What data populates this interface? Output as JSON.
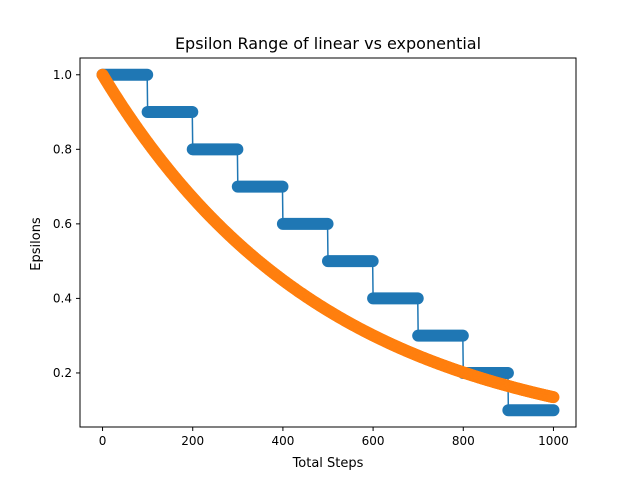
{
  "chart_data": {
    "type": "line",
    "title": "Epsilon Range of linear vs exponential",
    "xlabel": "Total Steps",
    "ylabel": "Epsilons",
    "xlim": [
      -50,
      1050
    ],
    "ylim": [
      0.055,
      1.045
    ],
    "x_ticks": [
      0,
      200,
      400,
      600,
      800,
      1000
    ],
    "y_ticks": [
      0.2,
      0.4,
      0.6,
      0.8,
      1.0
    ],
    "x_tick_labels": [
      "0",
      "200",
      "400",
      "600",
      "800",
      "1000"
    ],
    "y_tick_labels": [
      "0.2",
      "0.4",
      "0.6",
      "0.8",
      "1.0"
    ],
    "grid": false,
    "legend": false,
    "series": [
      {
        "color": "#1f77b4",
        "marker": "circle",
        "connected": true,
        "description_rule": "linear step decay",
        "steps": [
          {
            "x_start": 0,
            "x_end": 99,
            "y": 1.0
          },
          {
            "x_start": 100,
            "x_end": 199,
            "y": 0.9
          },
          {
            "x_start": 200,
            "x_end": 299,
            "y": 0.8
          },
          {
            "x_start": 300,
            "x_end": 399,
            "y": 0.7
          },
          {
            "x_start": 400,
            "x_end": 499,
            "y": 0.6
          },
          {
            "x_start": 500,
            "x_end": 599,
            "y": 0.5
          },
          {
            "x_start": 600,
            "x_end": 699,
            "y": 0.4
          },
          {
            "x_start": 700,
            "x_end": 799,
            "y": 0.3
          },
          {
            "x_start": 800,
            "x_end": 899,
            "y": 0.2
          },
          {
            "x_start": 900,
            "x_end": 1000,
            "y": 0.1
          }
        ]
      },
      {
        "color": "#ff7f0e",
        "marker": "circle",
        "connected": false,
        "x_range": [
          0,
          1000
        ],
        "y_start": 1.0,
        "y_end": 0.135,
        "points": [
          {
            "x": 0,
            "y": 1.0
          },
          {
            "x": 100,
            "y": 0.819
          },
          {
            "x": 200,
            "y": 0.67
          },
          {
            "x": 300,
            "y": 0.549
          },
          {
            "x": 400,
            "y": 0.449
          },
          {
            "x": 500,
            "y": 0.368
          },
          {
            "x": 600,
            "y": 0.301
          },
          {
            "x": 700,
            "y": 0.247
          },
          {
            "x": 800,
            "y": 0.202
          },
          {
            "x": 900,
            "y": 0.165
          },
          {
            "x": 1000,
            "y": 0.135
          }
        ]
      }
    ]
  }
}
